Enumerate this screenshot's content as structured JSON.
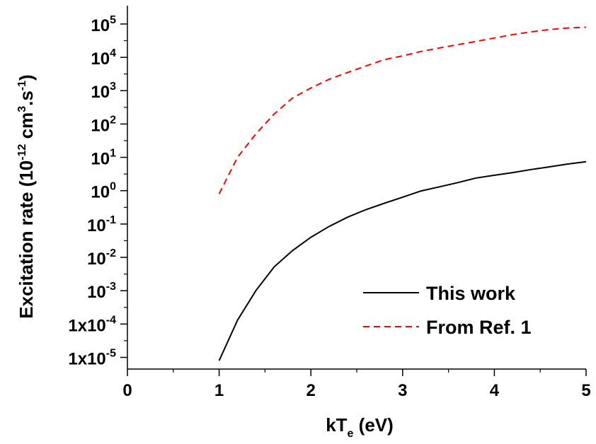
{
  "chart_data": {
    "type": "line",
    "title": "",
    "xlabel": {
      "main": "kT",
      "sub": "e",
      "rest": " (eV)"
    },
    "ylabel": {
      "main": "Excitation rate   (10",
      "exp1": "-12",
      "mid": " cm",
      "exp2": "3",
      "mid2": ".s",
      "exp3": "-1",
      "end": ")"
    },
    "xlim": [
      0,
      5
    ],
    "ylim_log10": [
      -5.35,
      5.55
    ],
    "y_scale": "log",
    "grid": false,
    "legend_position": "bottom-right",
    "x_ticks": [
      {
        "value": 0,
        "label": "0"
      },
      {
        "value": 1,
        "label": "1"
      },
      {
        "value": 2,
        "label": "2"
      },
      {
        "value": 3,
        "label": "3"
      },
      {
        "value": 4,
        "label": "4"
      },
      {
        "value": 5,
        "label": "5"
      }
    ],
    "y_ticks": [
      {
        "value": 1e-05,
        "base": "1x10",
        "exp": "-5"
      },
      {
        "value": 0.0001,
        "base": "1x10",
        "exp": "-4"
      },
      {
        "value": 0.001,
        "base": "10",
        "exp": "-3"
      },
      {
        "value": 0.01,
        "base": "10",
        "exp": "-2"
      },
      {
        "value": 0.1,
        "base": "10",
        "exp": "-1"
      },
      {
        "value": 1,
        "base": "10",
        "exp": "0"
      },
      {
        "value": 10,
        "base": "10",
        "exp": "1"
      },
      {
        "value": 100,
        "base": "10",
        "exp": "2"
      },
      {
        "value": 1000,
        "base": "10",
        "exp": "3"
      },
      {
        "value": 10000,
        "base": "10",
        "exp": "4"
      },
      {
        "value": 100000,
        "base": "10",
        "exp": "5"
      }
    ],
    "series": [
      {
        "name": "This work",
        "color": "#000000",
        "dash": "solid",
        "x": [
          1.0,
          1.2,
          1.4,
          1.6,
          1.8,
          2.0,
          2.2,
          2.4,
          2.6,
          2.8,
          3.0,
          3.2,
          3.4,
          3.6,
          3.8,
          4.0,
          4.2,
          4.4,
          4.6,
          4.8,
          5.0
        ],
        "y": [
          8e-06,
          0.00013,
          0.001,
          0.0052,
          0.016,
          0.04,
          0.085,
          0.16,
          0.27,
          0.42,
          0.64,
          0.98,
          1.3,
          1.75,
          2.4,
          2.9,
          3.5,
          4.3,
          5.2,
          6.3,
          7.4
        ]
      },
      {
        "name": "From Ref. 1",
        "color": "#ff0000",
        "dash": "dashed",
        "x": [
          1.0,
          1.2,
          1.4,
          1.6,
          1.8,
          2.0,
          2.2,
          2.4,
          2.6,
          2.8,
          3.0,
          3.2,
          3.4,
          3.6,
          3.8,
          4.0,
          4.2,
          4.4,
          4.6,
          4.8,
          5.0
        ],
        "y": [
          0.8,
          10,
          50,
          200,
          600,
          1200,
          2200,
          3500,
          5500,
          8500,
          11000,
          15000,
          19000,
          24000,
          30000,
          38000,
          48000,
          58000,
          68000,
          76000,
          80000
        ]
      }
    ]
  }
}
